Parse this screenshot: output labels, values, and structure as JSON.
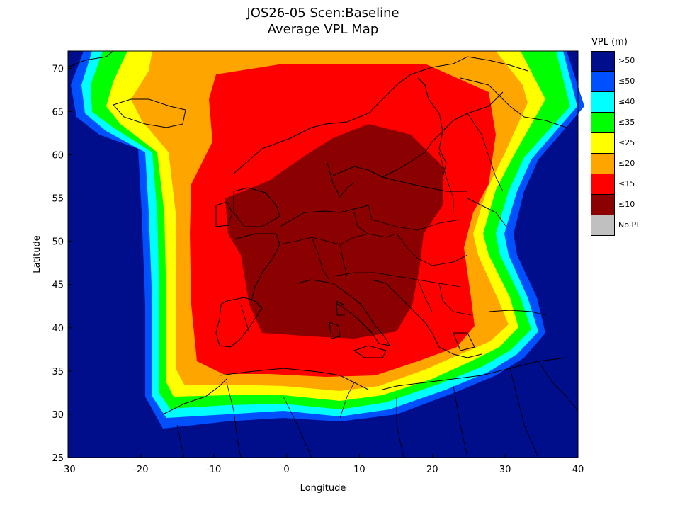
{
  "title": {
    "line1": "JOS26-05 Scen:Baseline",
    "line2": "Average VPL Map"
  },
  "map": {
    "region": "Europe",
    "lon_range": [
      -30,
      40
    ],
    "lat_range": [
      25,
      72
    ],
    "x_ticks": [
      "-30",
      "-20",
      "-10",
      "0",
      "10",
      "20",
      "30",
      "40"
    ],
    "y_ticks": [
      "25",
      "30",
      "35",
      "40",
      "45",
      "50",
      "55",
      "60",
      "65",
      "70"
    ],
    "x_label": "Longitude",
    "y_label": "Latitude"
  },
  "legend": {
    "title": "VPL (m)",
    "items": [
      {
        "label": ">50",
        "color": "#000e8c"
      },
      {
        "label": "≤50",
        "color": "#0050ff"
      },
      {
        "label": "≤40",
        "color": "#00ffff"
      },
      {
        "label": "≤35",
        "color": "#00ff00"
      },
      {
        "label": "≤25",
        "color": "#ffff00"
      },
      {
        "label": "≤20",
        "color": "#ffa500"
      },
      {
        "label": "≤15",
        "color": "#ff0000"
      },
      {
        "label": "≤10",
        "color": "#8b0000"
      },
      {
        "label": "No PL",
        "color": "#c0c0c0"
      }
    ]
  }
}
